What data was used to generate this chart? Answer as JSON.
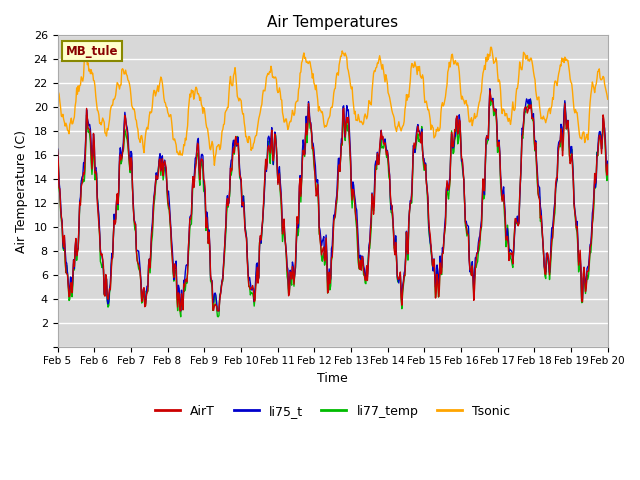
{
  "title": "Air Temperatures",
  "xlabel": "Time",
  "ylabel": "Air Temperature (C)",
  "site_label": "MB_tule",
  "ylim": [
    0,
    26
  ],
  "yticks": [
    0,
    2,
    4,
    6,
    8,
    10,
    12,
    14,
    16,
    18,
    20,
    22,
    24,
    26
  ],
  "colors": {
    "AirT": "#cc0000",
    "li75_t": "#0000cc",
    "li77_temp": "#00bb00",
    "Tsonic": "#ffa500"
  },
  "fig_bg": "#ffffff",
  "plot_bg": "#d8d8d8",
  "grid_color": "#ffffff",
  "n_days": 15,
  "start_day": 5,
  "legend_entries": [
    "AirT",
    "li75_t",
    "li77_temp",
    "Tsonic"
  ]
}
